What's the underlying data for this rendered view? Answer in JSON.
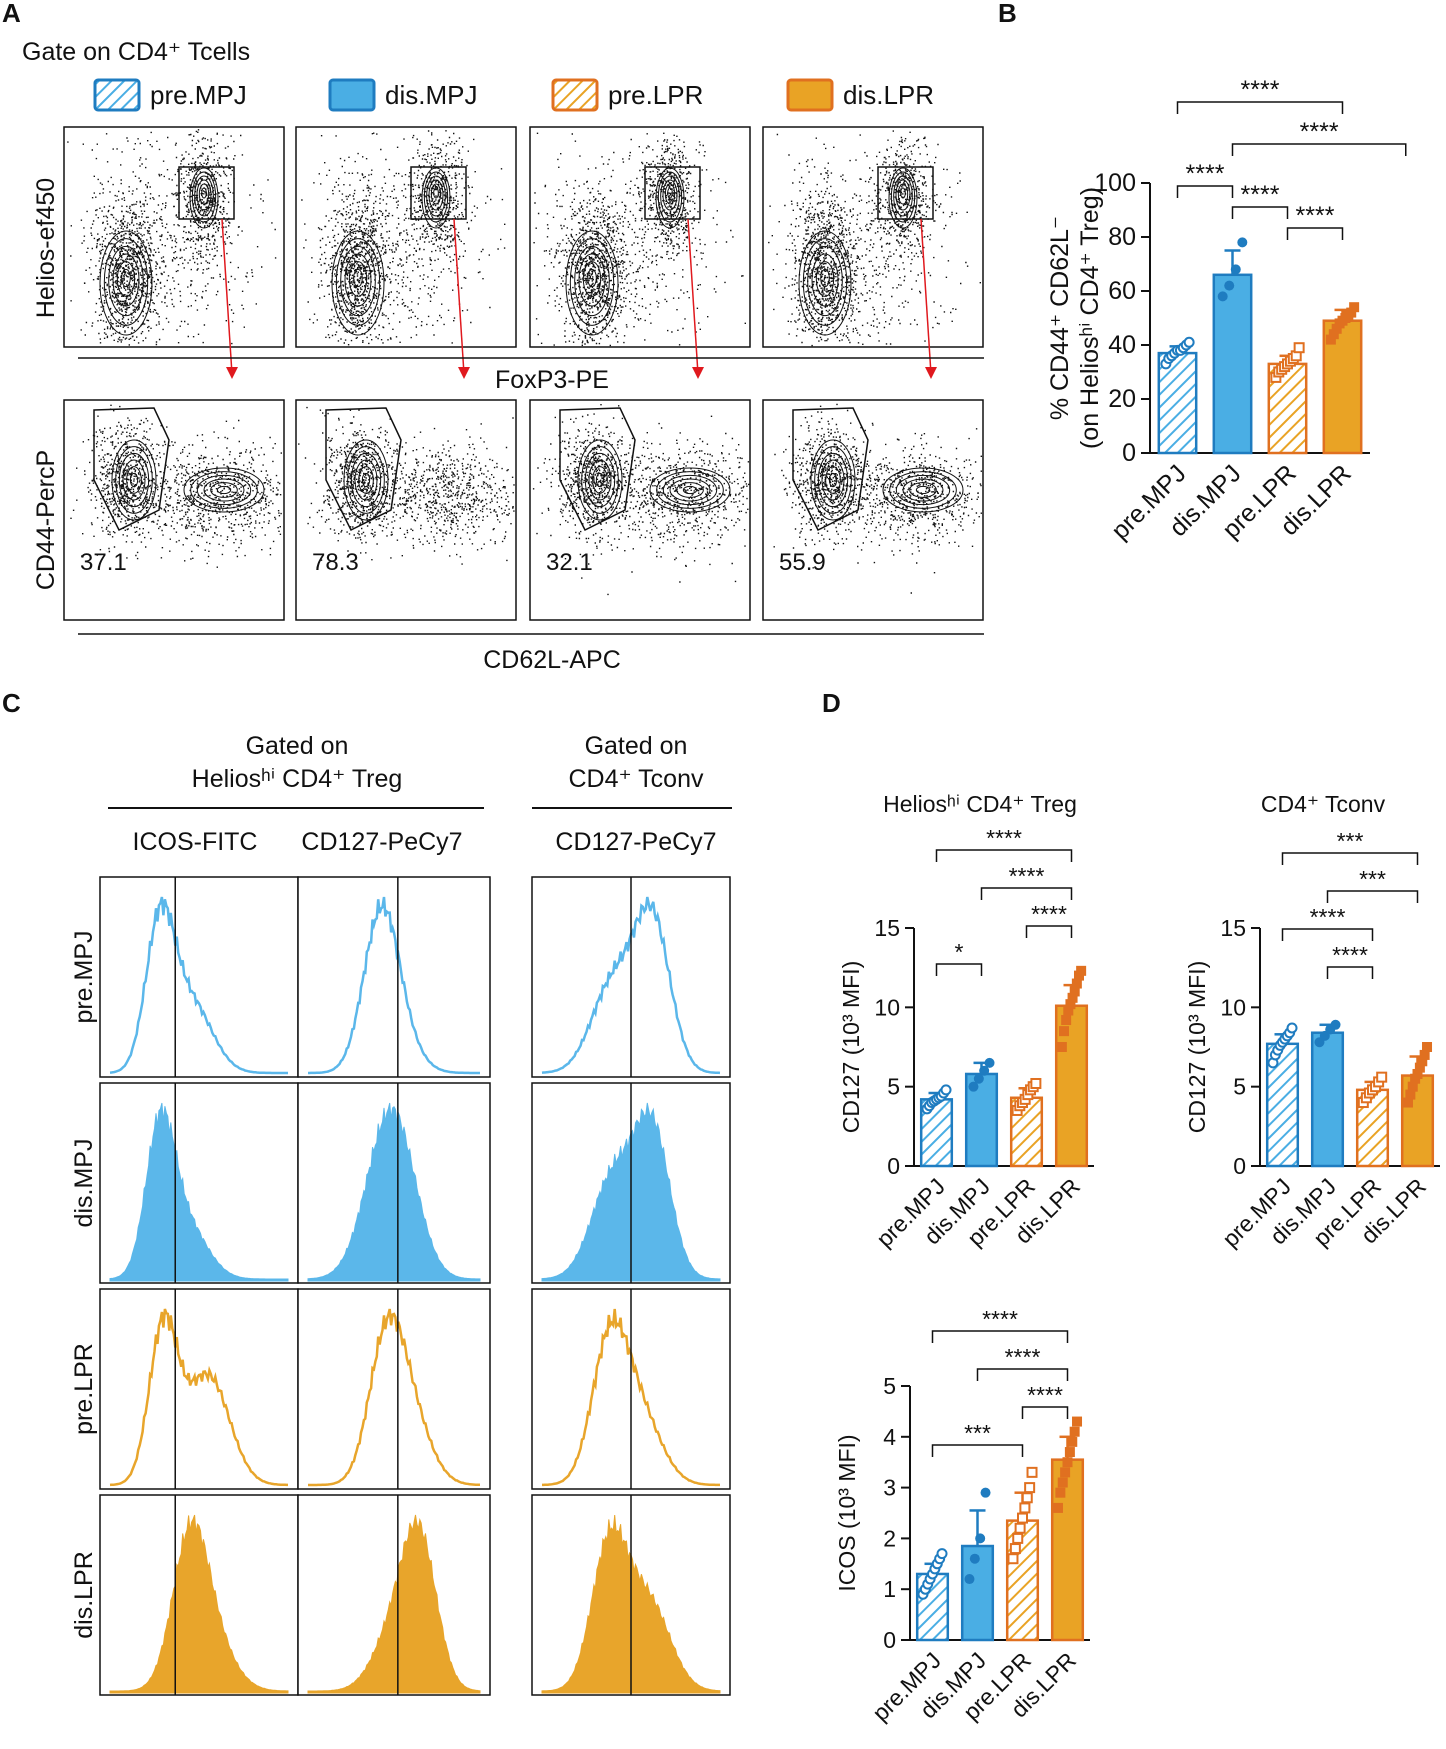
{
  "colors": {
    "mpj": "#4aaee4",
    "mpj_dark": "#1f7cc0",
    "lpr": "#e9a325",
    "lpr_dark": "#e07020",
    "hist_mpj": "#5bb7ea",
    "hist_lpr": "#e8a52b"
  },
  "panels": {
    "a": "A",
    "b": "B",
    "c": "C",
    "d": "D"
  },
  "panel_a": {
    "gate_title": "Gate on CD4⁺ Tcells",
    "legend": [
      {
        "label": "pre.MPJ",
        "group": "mpj",
        "hatched": true
      },
      {
        "label": "dis.MPJ",
        "group": "mpj",
        "hatched": false
      },
      {
        "label": "pre.LPR",
        "group": "lpr",
        "hatched": true
      },
      {
        "label": "dis.LPR",
        "group": "lpr",
        "hatched": false
      }
    ],
    "top_y_label": "Helios-ef450",
    "top_x_label": "FoxP3-PE",
    "bottom_y_label": "CD44-PercP",
    "bottom_x_label": "CD62L-APC",
    "gate_percentages": [
      "37.1",
      "78.3",
      "32.1",
      "55.9"
    ]
  },
  "panel_c": {
    "header_treg_1": "Gated on",
    "header_treg_2": "Heliosʰⁱ CD4⁺ Treg",
    "header_tconv_1": "Gated on",
    "header_tconv_2": "CD4⁺ Tconv",
    "columns": [
      "ICOS-FITC",
      "CD127-PeCy7",
      "CD127-PeCy7"
    ],
    "rows": [
      {
        "label": "pre.MPJ",
        "group": "mpj",
        "filled": false
      },
      {
        "label": "dis.MPJ",
        "group": "mpj",
        "filled": true
      },
      {
        "label": "pre.LPR",
        "group": "lpr",
        "filled": false
      },
      {
        "label": "dis.LPR",
        "group": "lpr",
        "filled": true
      }
    ]
  },
  "chart_data": [
    {
      "id": "B",
      "type": "bar",
      "title": "",
      "ylabel_line1": "% CD44⁺ CD62L⁻",
      "ylabel_line2": "(on Heliosʰⁱ CD4⁺ Treg)",
      "categories": [
        "pre.MPJ",
        "dis.MPJ",
        "pre.LPR",
        "dis.LPR"
      ],
      "values": [
        37,
        66,
        33,
        49
      ],
      "errors": [
        2.5,
        9,
        3,
        4
      ],
      "points": [
        [
          33,
          35,
          36,
          37,
          38,
          38,
          39,
          40,
          41
        ],
        [
          58,
          62,
          68,
          78
        ],
        [
          28,
          30,
          31,
          32,
          33,
          34,
          35,
          36,
          39
        ],
        [
          42,
          44,
          46,
          48,
          49,
          50,
          51,
          52,
          54
        ]
      ],
      "ylim": [
        0,
        100
      ],
      "yticks": [
        0,
        20,
        40,
        60,
        80,
        100
      ],
      "significance": [
        {
          "from": 0,
          "to": 3,
          "label": "****",
          "level": 3
        },
        {
          "from": 1,
          "to": 4.3,
          "label": "****",
          "level": 2
        },
        {
          "from": 0,
          "to": 1,
          "label": "****",
          "level": 1
        },
        {
          "from": 1,
          "to": 2,
          "label": "****",
          "level": 0.5
        },
        {
          "from": 2,
          "to": 3,
          "label": "****",
          "level": 0
        }
      ]
    },
    {
      "id": "D1",
      "type": "bar",
      "title": "Heliosʰⁱ CD4⁺ Treg",
      "ylabel": "CD127 (10³ MFI)",
      "categories": [
        "pre.MPJ",
        "dis.MPJ",
        "pre.LPR",
        "dis.LPR"
      ],
      "values": [
        4.2,
        5.8,
        4.3,
        10.1
      ],
      "errors": [
        0.4,
        0.7,
        0.6,
        1.3
      ],
      "points": [
        [
          3.6,
          3.8,
          4.0,
          4.1,
          4.2,
          4.3,
          4.4,
          4.6,
          4.8
        ],
        [
          5.0,
          5.5,
          6.0,
          6.5
        ],
        [
          3.5,
          3.8,
          4.0,
          4.2,
          4.5,
          4.8,
          5.0,
          5.2
        ],
        [
          7.5,
          8.5,
          9.2,
          9.8,
          10.2,
          10.6,
          11.0,
          11.5,
          12.0,
          12.3
        ]
      ],
      "ylim": [
        0,
        15
      ],
      "yticks": [
        0,
        5,
        10,
        15
      ],
      "significance": [
        {
          "from": 0,
          "to": 3,
          "label": "****",
          "level": 3
        },
        {
          "from": 1,
          "to": 3,
          "label": "****",
          "level": 2
        },
        {
          "from": 2,
          "to": 3,
          "label": "****",
          "level": 1
        },
        {
          "from": 0,
          "to": 1,
          "label": "*",
          "level": 0
        }
      ]
    },
    {
      "id": "D2",
      "type": "bar",
      "title": "CD4⁺ Tconv",
      "ylabel": "CD127 (10³ MFI)",
      "categories": [
        "pre.MPJ",
        "dis.MPJ",
        "pre.LPR",
        "dis.LPR"
      ],
      "values": [
        7.7,
        8.4,
        4.8,
        5.7
      ],
      "errors": [
        0.6,
        0.5,
        0.5,
        1.2
      ],
      "points": [
        [
          6.5,
          7.0,
          7.3,
          7.6,
          7.8,
          8.0,
          8.2,
          8.4,
          8.7
        ],
        [
          7.8,
          8.2,
          8.6,
          8.9
        ],
        [
          4.0,
          4.3,
          4.6,
          4.8,
          5.0,
          5.3,
          5.6
        ],
        [
          4.0,
          4.5,
          5.0,
          5.5,
          5.8,
          6.2,
          6.6,
          7.0,
          7.5
        ]
      ],
      "ylim": [
        0,
        15
      ],
      "yticks": [
        0,
        5,
        10,
        15
      ],
      "significance": [
        {
          "from": 0,
          "to": 3,
          "label": "***",
          "level": 3
        },
        {
          "from": 1,
          "to": 3,
          "label": "***",
          "level": 2
        },
        {
          "from": 0,
          "to": 2,
          "label": "****",
          "level": 1
        },
        {
          "from": 1,
          "to": 2,
          "label": "****",
          "level": 0
        }
      ]
    },
    {
      "id": "D3",
      "type": "bar",
      "title": "",
      "ylabel": "ICOS (10³ MFI)",
      "categories": [
        "pre.MPJ",
        "dis.MPJ",
        "pre.LPR",
        "dis.LPR"
      ],
      "values": [
        1.3,
        1.85,
        2.35,
        3.55
      ],
      "errors": [
        0.2,
        0.7,
        0.55,
        0.45
      ],
      "points": [
        [
          0.9,
          1.0,
          1.1,
          1.2,
          1.3,
          1.4,
          1.5,
          1.6,
          1.7
        ],
        [
          1.2,
          1.6,
          2.0,
          2.9
        ],
        [
          1.6,
          1.8,
          2.0,
          2.2,
          2.4,
          2.6,
          2.8,
          3.0,
          3.3
        ],
        [
          2.6,
          2.9,
          3.1,
          3.3,
          3.5,
          3.7,
          3.9,
          4.1,
          4.3
        ]
      ],
      "ylim": [
        0,
        5
      ],
      "yticks": [
        0,
        1,
        2,
        3,
        4,
        5
      ],
      "significance": [
        {
          "from": 0,
          "to": 3,
          "label": "****",
          "level": 3
        },
        {
          "from": 1,
          "to": 3,
          "label": "****",
          "level": 2
        },
        {
          "from": 2,
          "to": 3,
          "label": "****",
          "level": 1
        },
        {
          "from": 0,
          "to": 2,
          "label": "***",
          "level": 0
        }
      ]
    }
  ]
}
